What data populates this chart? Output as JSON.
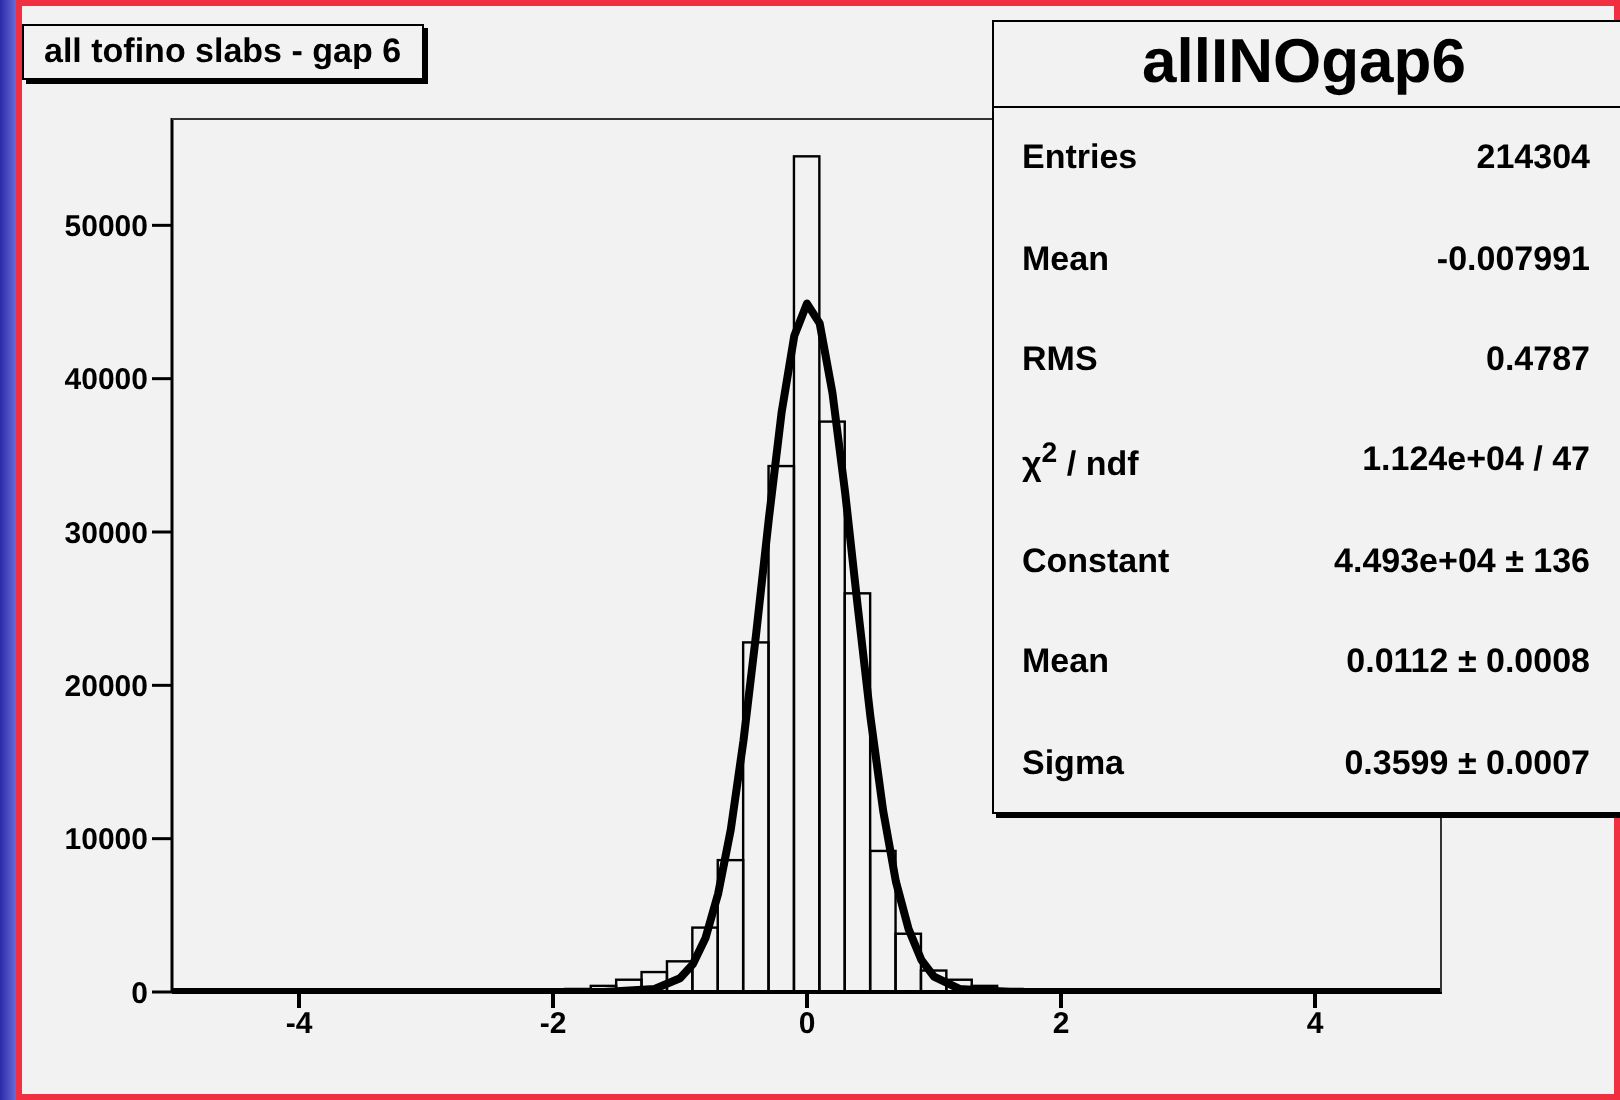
{
  "chart_data": {
    "type": "histogram",
    "title": "all tofino slabs - gap 6",
    "xlim": [
      -5,
      5
    ],
    "xticks": [
      -4,
      -2,
      0,
      2,
      4
    ],
    "ylim": [
      0,
      57000
    ],
    "yticks": [
      0,
      10000,
      20000,
      30000,
      40000,
      50000
    ],
    "grid": false,
    "legend": false,
    "series": [
      {
        "type": "histogram",
        "color": "#000000",
        "bins": [
          -4.9,
          -4.7,
          -4.5,
          -4.3,
          -4.1,
          -3.9,
          -3.7,
          -3.5,
          -3.3,
          -3.1,
          -2.9,
          -2.7,
          -2.5,
          -2.3,
          -2.1,
          -1.9,
          -1.7,
          -1.5,
          -1.3,
          -1.1,
          -0.9,
          -0.7,
          -0.5,
          -0.3,
          -0.1,
          0.1,
          0.3,
          0.5,
          0.7,
          0.9,
          1.1,
          1.3,
          1.5,
          1.7,
          1.9,
          2.1,
          2.3,
          2.5,
          2.7,
          2.9,
          3.1,
          3.3,
          3.5,
          3.7,
          3.9,
          4.1,
          4.3,
          4.5,
          4.7,
          4.9
        ],
        "values": [
          0,
          0,
          0,
          0,
          0,
          0,
          0,
          0,
          0,
          0,
          0,
          0,
          0,
          0,
          0,
          200,
          400,
          800,
          1300,
          2000,
          4200,
          8600,
          22800,
          34300,
          54500,
          37200,
          26000,
          9200,
          3800,
          1400,
          800,
          400,
          200,
          0,
          0,
          0,
          0,
          0,
          0,
          0,
          0,
          0,
          0,
          0,
          0,
          0,
          0,
          0,
          0
        ]
      },
      {
        "type": "line",
        "color": "#000000",
        "x": [
          -5,
          -1.6,
          -1.2,
          -1.0,
          -0.9,
          -0.8,
          -0.7,
          -0.6,
          -0.5,
          -0.4,
          -0.3,
          -0.2,
          -0.1,
          0,
          0.1,
          0.2,
          0.3,
          0.4,
          0.5,
          0.6,
          0.7,
          0.8,
          0.9,
          1.0,
          1.2,
          1.6,
          5
        ],
        "values": [
          0,
          0,
          200,
          900,
          1800,
          3500,
          6400,
          10600,
          16400,
          23400,
          30900,
          37800,
          42800,
          44900,
          43600,
          39100,
          32600,
          25100,
          17900,
          11800,
          7200,
          4100,
          2100,
          1000,
          200,
          0,
          0
        ]
      }
    ],
    "annotations": [
      "allINOgap6",
      "Entries",
      "214304",
      "Mean",
      "-0.007991",
      "RMS",
      "0.4787",
      "χ$^{2}$ / ndf",
      "1.124e+04 / 47",
      "Constant",
      "4.493e+04 ± 136",
      "Mean",
      "0.0112 ± 0.0008",
      "Sigma",
      "0.3599 ± 0.0007"
    ]
  }
}
